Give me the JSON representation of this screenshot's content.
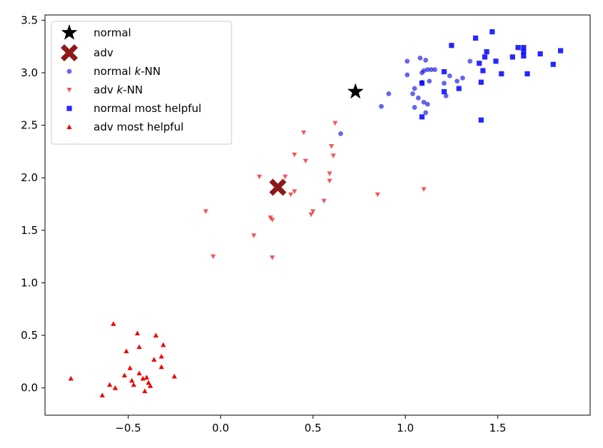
{
  "chart_data": {
    "type": "scatter",
    "title": "",
    "xlabel": "",
    "ylabel": "",
    "xlim": [
      -0.95,
      2.0
    ],
    "ylim": [
      -0.26,
      3.55
    ],
    "x_ticks": [
      -0.5,
      0.0,
      0.5,
      1.0,
      1.5
    ],
    "x_tick_labels": [
      "−0.5",
      "0.0",
      "0.5",
      "1.0",
      "1.5"
    ],
    "y_ticks": [
      0.0,
      0.5,
      1.0,
      1.5,
      2.0,
      2.5,
      3.0,
      3.5
    ],
    "y_tick_labels": [
      "0.0",
      "0.5",
      "1.0",
      "1.5",
      "2.0",
      "2.5",
      "3.0",
      "3.5"
    ],
    "grid": false,
    "legend_position": "top-left",
    "series": [
      {
        "name_parts": [
          "normal"
        ],
        "marker": "star",
        "color": "#000000",
        "alpha": 1.0,
        "points": [
          [
            0.73,
            2.82
          ]
        ]
      },
      {
        "name_parts": [
          "adv"
        ],
        "marker": "x-filled",
        "color": "#8b1a1a",
        "alpha": 1.0,
        "points": [
          [
            0.31,
            1.91
          ]
        ]
      },
      {
        "name_parts": [
          "normal ",
          "k",
          "-NN"
        ],
        "marker": "circle",
        "color": "#0000e0",
        "alpha": 0.6,
        "points": [
          [
            0.65,
            2.42
          ],
          [
            0.87,
            2.68
          ],
          [
            0.91,
            2.8
          ],
          [
            1.01,
            3.11
          ],
          [
            1.01,
            2.98
          ],
          [
            1.04,
            2.8
          ],
          [
            1.05,
            2.85
          ],
          [
            1.05,
            2.67
          ],
          [
            1.07,
            2.76
          ],
          [
            1.08,
            3.14
          ],
          [
            1.09,
            3.0
          ],
          [
            1.09,
            2.91
          ],
          [
            1.1,
            3.02
          ],
          [
            1.1,
            2.72
          ],
          [
            1.11,
            3.12
          ],
          [
            1.11,
            2.62
          ],
          [
            1.12,
            3.03
          ],
          [
            1.12,
            2.7
          ],
          [
            1.13,
            2.92
          ],
          [
            1.14,
            3.03
          ],
          [
            1.16,
            3.03
          ],
          [
            1.21,
            2.9
          ],
          [
            1.22,
            2.78
          ],
          [
            1.24,
            2.97
          ],
          [
            1.28,
            2.92
          ],
          [
            1.31,
            2.95
          ],
          [
            1.35,
            3.11
          ]
        ]
      },
      {
        "name_parts": [
          "adv ",
          "k",
          "-NN"
        ],
        "marker": "triangle-down",
        "color": "#e8232a",
        "alpha": 0.75,
        "points": [
          [
            -0.08,
            1.68
          ],
          [
            -0.04,
            1.25
          ],
          [
            0.18,
            1.45
          ],
          [
            0.21,
            2.01
          ],
          [
            0.27,
            1.62
          ],
          [
            0.28,
            1.6
          ],
          [
            0.28,
            1.24
          ],
          [
            0.35,
            2.01
          ],
          [
            0.38,
            1.84
          ],
          [
            0.4,
            1.87
          ],
          [
            0.4,
            2.22
          ],
          [
            0.45,
            2.43
          ],
          [
            0.46,
            2.16
          ],
          [
            0.49,
            1.65
          ],
          [
            0.5,
            1.68
          ],
          [
            0.56,
            1.78
          ],
          [
            0.59,
            2.04
          ],
          [
            0.59,
            1.97
          ],
          [
            0.6,
            2.3
          ],
          [
            0.61,
            2.21
          ],
          [
            0.62,
            2.52
          ],
          [
            0.85,
            1.84
          ],
          [
            1.1,
            1.89
          ]
        ]
      },
      {
        "name_parts": [
          "normal most helpful"
        ],
        "marker": "square",
        "color": "#0000ff",
        "alpha": 0.85,
        "points": [
          [
            1.09,
            2.9
          ],
          [
            1.09,
            2.58
          ],
          [
            1.21,
            3.01
          ],
          [
            1.21,
            2.82
          ],
          [
            1.25,
            3.26
          ],
          [
            1.29,
            2.85
          ],
          [
            1.38,
            3.33
          ],
          [
            1.4,
            3.09
          ],
          [
            1.41,
            2.91
          ],
          [
            1.41,
            2.55
          ],
          [
            1.42,
            3.02
          ],
          [
            1.43,
            3.15
          ],
          [
            1.44,
            3.2
          ],
          [
            1.47,
            3.39
          ],
          [
            1.49,
            3.11
          ],
          [
            1.52,
            2.99
          ],
          [
            1.58,
            3.15
          ],
          [
            1.61,
            3.24
          ],
          [
            1.64,
            3.24
          ],
          [
            1.64,
            3.2
          ],
          [
            1.64,
            3.16
          ],
          [
            1.66,
            2.99
          ],
          [
            1.73,
            3.18
          ],
          [
            1.8,
            3.08
          ],
          [
            1.84,
            3.21
          ]
        ]
      },
      {
        "name_parts": [
          "adv most helpful"
        ],
        "marker": "triangle-up",
        "color": "#ee0000",
        "alpha": 1.0,
        "points": [
          [
            -0.81,
            0.09
          ],
          [
            -0.64,
            -0.07
          ],
          [
            -0.6,
            0.03
          ],
          [
            -0.58,
            0.61
          ],
          [
            -0.57,
            0.0
          ],
          [
            -0.52,
            0.12
          ],
          [
            -0.51,
            0.35
          ],
          [
            -0.49,
            0.19
          ],
          [
            -0.48,
            0.07
          ],
          [
            -0.47,
            0.03
          ],
          [
            -0.45,
            0.52
          ],
          [
            -0.44,
            0.14
          ],
          [
            -0.44,
            0.39
          ],
          [
            -0.42,
            0.09
          ],
          [
            -0.41,
            -0.03
          ],
          [
            -0.4,
            0.1
          ],
          [
            -0.39,
            0.05
          ],
          [
            -0.38,
            0.02
          ],
          [
            -0.36,
            0.27
          ],
          [
            -0.35,
            0.5
          ],
          [
            -0.32,
            0.3
          ],
          [
            -0.32,
            0.2
          ],
          [
            -0.31,
            0.41
          ],
          [
            -0.25,
            0.11
          ]
        ]
      }
    ]
  }
}
